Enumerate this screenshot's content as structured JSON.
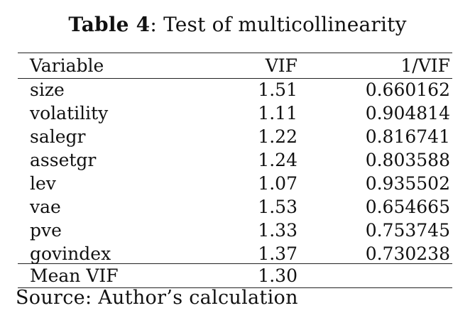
{
  "caption": {
    "label": "Table 4",
    "separator": ": ",
    "title": "Test of multicollinearity"
  },
  "table": {
    "headers": {
      "variable": "Variable",
      "vif": "VIF",
      "inv_vif": "1/VIF"
    },
    "rows": [
      {
        "variable": "size",
        "vif": "1.51",
        "inv_vif": "0.660162"
      },
      {
        "variable": "volatility",
        "vif": "1.11",
        "inv_vif": "0.904814"
      },
      {
        "variable": "salegr",
        "vif": "1.22",
        "inv_vif": "0.816741"
      },
      {
        "variable": "assetgr",
        "vif": "1.24",
        "inv_vif": "0.803588"
      },
      {
        "variable": "lev",
        "vif": "1.07",
        "inv_vif": "0.935502"
      },
      {
        "variable": "vae",
        "vif": "1.53",
        "inv_vif": "0.654665"
      },
      {
        "variable": "pve",
        "vif": "1.33",
        "inv_vif": "0.753745"
      },
      {
        "variable": "govindex",
        "vif": "1.37",
        "inv_vif": "0.730238"
      }
    ],
    "mean": {
      "label": "Mean VIF",
      "vif": "1.30"
    }
  },
  "source": "Source: Author’s calculation"
}
